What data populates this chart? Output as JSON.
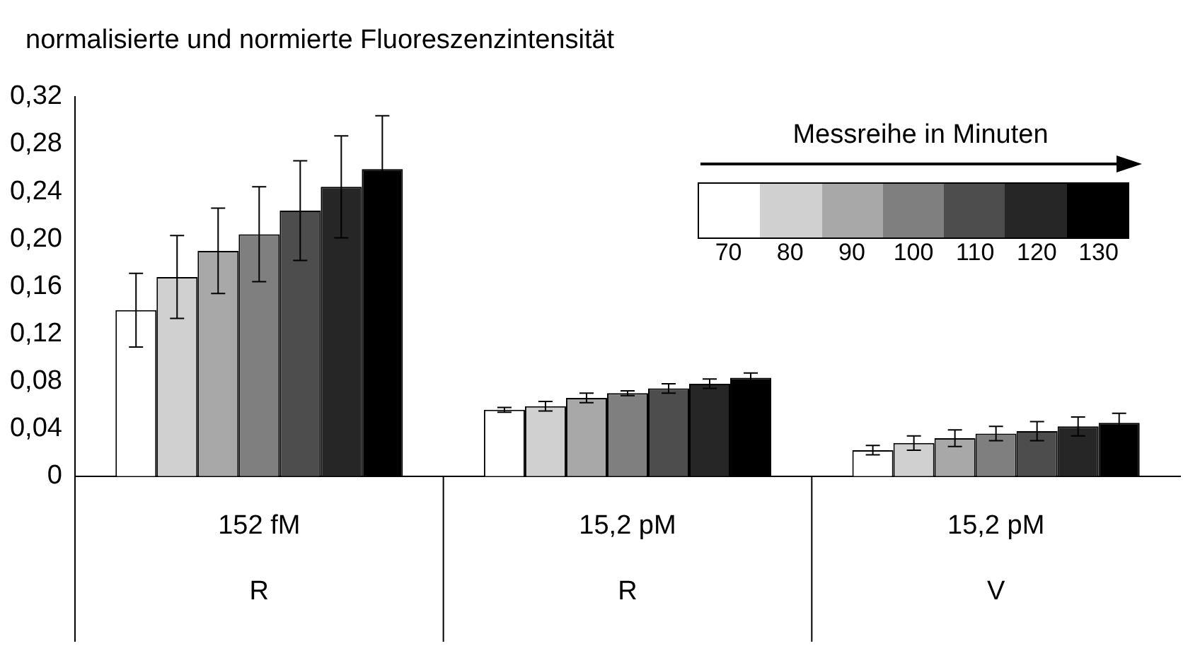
{
  "chart_data": {
    "type": "bar",
    "ylabel": "normalisierte und normierte Fluoreszenzintensität",
    "legend_title": "Messreihe in Minuten",
    "legend": "top right",
    "grid": false,
    "categories": [
      "152 fM\nR",
      "15,2 pM\nR",
      "15,2 pM\nV"
    ],
    "ylim": [
      0,
      0.32
    ],
    "yticks": [
      0,
      {
        "value": 0.04,
        "label": "0,04"
      },
      {
        "value": 0.08,
        "label": "0,08"
      },
      {
        "value": 0.12,
        "label": "0,12"
      },
      {
        "value": 0.16,
        "label": "0,16"
      },
      {
        "value": 0.2,
        "label": "0,20"
      },
      {
        "value": 0.24,
        "label": "0,24"
      },
      {
        "value": 0.28,
        "label": "0,28"
      },
      {
        "value": 0.32,
        "label": "0,32"
      }
    ],
    "series": [
      {
        "name": "70",
        "color": "#ffffff",
        "values": [
          0.14,
          0.056,
          0.022
        ],
        "errors": [
          0.031,
          0.002,
          0.004
        ]
      },
      {
        "name": "80",
        "color": "#d0d0d0",
        "values": [
          0.168,
          0.059,
          0.028
        ],
        "errors": [
          0.035,
          0.004,
          0.006
        ]
      },
      {
        "name": "90",
        "color": "#a8a8a8",
        "values": [
          0.19,
          0.066,
          0.032
        ],
        "errors": [
          0.036,
          0.004,
          0.007
        ]
      },
      {
        "name": "100",
        "color": "#7f7f7f",
        "values": [
          0.204,
          0.07,
          0.036
        ],
        "errors": [
          0.04,
          0.002,
          0.006
        ]
      },
      {
        "name": "110",
        "color": "#4d4d4d",
        "values": [
          0.224,
          0.074,
          0.038
        ],
        "errors": [
          0.042,
          0.004,
          0.008
        ]
      },
      {
        "name": "120",
        "color": "#262626",
        "values": [
          0.244,
          0.078,
          0.042
        ],
        "errors": [
          0.043,
          0.004,
          0.008
        ]
      },
      {
        "name": "130",
        "color": "#000000",
        "values": [
          0.259,
          0.083,
          0.045
        ],
        "errors": [
          0.045,
          0.004,
          0.008
        ]
      }
    ]
  }
}
